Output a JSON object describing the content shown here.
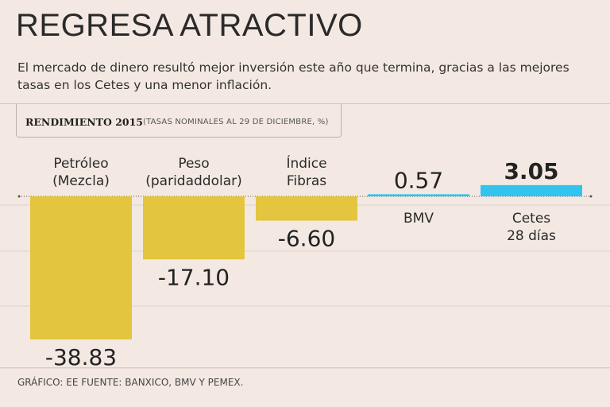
{
  "header": {
    "title": "REGRESA ATRACTIVO",
    "subtitle": "El mercado de dinero resultó mejor inversión este año que termina, gracias a las mejores tasas en los Cetes y una menor inflación."
  },
  "panel": {
    "title": "RENDIMIENTO 2015",
    "subtitle": "(TASAS NOMINALES AL 29 DE DICIEMBRE, %)"
  },
  "footer": {
    "source": "GRÁFICO: EE  FUENTE: BANXICO, BMV Y PEMEX."
  },
  "colors": {
    "negative": "#e3c53f",
    "positive": "#33c3ef",
    "axis": "#555555",
    "grid": "#ddd3cc"
  },
  "chart_data": {
    "type": "bar",
    "title": "RENDIMIENTO 2015",
    "subtitle": "(TASAS NOMINALES AL 29 DE DICIEMBRE, %)",
    "xlabel": "",
    "ylabel": "%",
    "ylim": [
      -40,
      5
    ],
    "grid": true,
    "categories": [
      [
        "Petróleo",
        "(Mezcla)"
      ],
      [
        "Peso",
        "(paridaddolar)"
      ],
      [
        "Índice",
        "Fibras"
      ],
      [
        "BMV"
      ],
      [
        "Cetes",
        "28 días"
      ]
    ],
    "values": [
      -38.83,
      -17.1,
      -6.6,
      0.57,
      3.05
    ],
    "labels": [
      "-38.83",
      "-17.10",
      "-6.60",
      "0.57",
      "3.05"
    ]
  }
}
